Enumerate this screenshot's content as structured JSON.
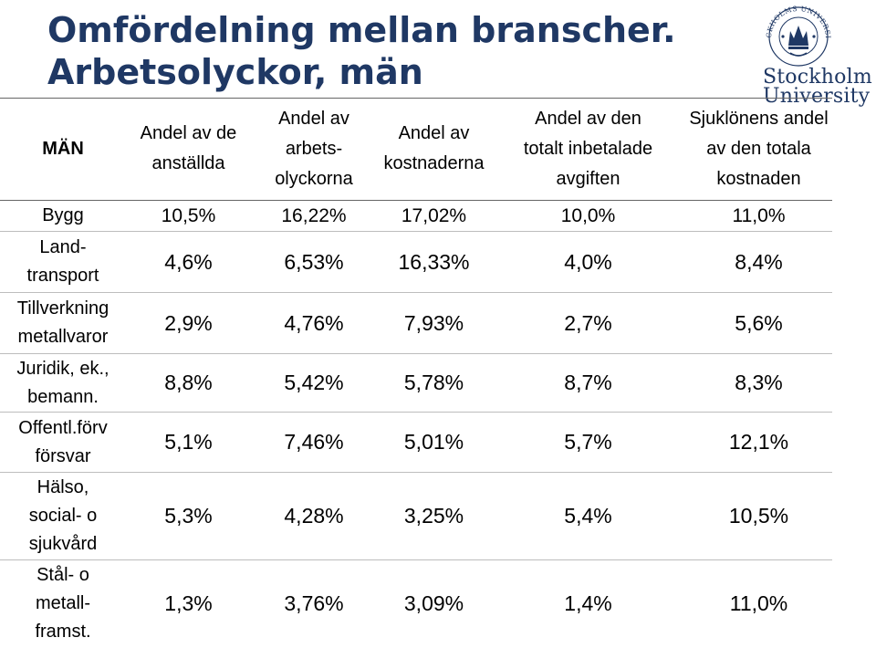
{
  "slide": {
    "title_line1": "Omfördelning mellan branscher.",
    "title_line2": "Arbetsolyckor, män"
  },
  "logo": {
    "word1": "Stockholm",
    "word2": "University",
    "seal_text": "STOCKHOLMS UNIVERSITET"
  },
  "table": {
    "headers": [
      {
        "line1": "MÄN",
        "line2": "",
        "line3": ""
      },
      {
        "line1": "Andel av de",
        "line2": "anställda",
        "line3": ""
      },
      {
        "line1": "Andel av",
        "line2": "arbets-",
        "line3": "olyckorna"
      },
      {
        "line1": "Andel av",
        "line2": "kostnaderna",
        "line3": ""
      },
      {
        "line1": "Andel av den",
        "line2": "totalt inbetalade",
        "line3": "avgiften"
      },
      {
        "line1": "Sjuklönens andel",
        "line2": "av den totala",
        "line3": "kostnaden"
      }
    ],
    "rows": [
      {
        "label1": "Bygg",
        "label2": "",
        "label3": "",
        "values": [
          "10,5%",
          "16,22%",
          "17,02%",
          "10,0%",
          "11,0%"
        ]
      },
      {
        "label1": "Land-",
        "label2": "transport",
        "label3": "",
        "values": [
          "4,6%",
          "6,53%",
          "16,33%",
          "4,0%",
          "8,4%"
        ]
      },
      {
        "label1": "Tillverkning",
        "label2": "metallvaror",
        "label3": "",
        "values": [
          "2,9%",
          "4,76%",
          "7,93%",
          "2,7%",
          "5,6%"
        ]
      },
      {
        "label1": "Juridik, ek.,",
        "label2": "bemann.",
        "label3": "",
        "values": [
          "8,8%",
          "5,42%",
          "5,78%",
          "8,7%",
          "8,3%"
        ]
      },
      {
        "label1": "Offentl.förv",
        "label2": "försvar",
        "label3": "",
        "values": [
          "5,1%",
          "7,46%",
          "5,01%",
          "5,7%",
          "12,1%"
        ]
      },
      {
        "label1": "Hälso,",
        "label2": "social- o",
        "label3": "sjukvård",
        "values": [
          "5,3%",
          "4,28%",
          "3,25%",
          "5,4%",
          "10,5%"
        ]
      },
      {
        "label1": "Stål- o",
        "label2": "metall-",
        "label3": "framst.",
        "values": [
          "1,3%",
          "3,76%",
          "3,09%",
          "1,4%",
          "11,0%"
        ]
      }
    ]
  },
  "colors": {
    "title": "#1f3864",
    "logo": "#1f3864"
  }
}
